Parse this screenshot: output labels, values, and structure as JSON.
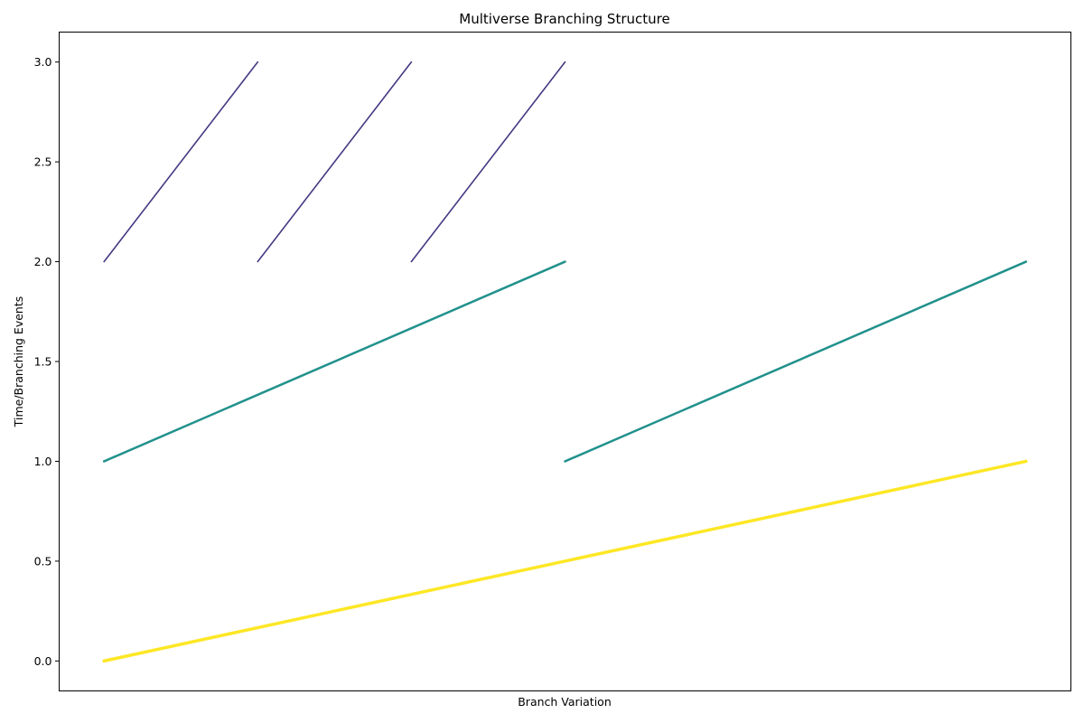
{
  "chart_data": {
    "type": "line",
    "title": "Multiverse Branching Structure",
    "xlabel": "Branch Variation",
    "ylabel": "Time/Branching Events",
    "xlim": [
      -0.146,
      3.146
    ],
    "ylim": [
      -0.15,
      3.15
    ],
    "x_ticks_shown": false,
    "grid": false,
    "y_tick_labels": [
      "0.0",
      "0.5",
      "1.0",
      "1.5",
      "2.0",
      "2.5",
      "3.0"
    ],
    "y_ticks": [
      0.0,
      0.5,
      1.0,
      1.5,
      2.0,
      2.5,
      3.0
    ],
    "series": [
      {
        "level": 0,
        "color": "#fde725",
        "segments": [
          [
            [
              0,
              0
            ],
            [
              3,
              1
            ]
          ]
        ]
      },
      {
        "level": 1,
        "color": "#21918c",
        "segments": [
          [
            [
              0,
              1
            ],
            [
              1.5,
              2
            ]
          ],
          [
            [
              1.5,
              1
            ],
            [
              3,
              2
            ]
          ]
        ]
      },
      {
        "level": 2,
        "color": "#443983",
        "segments": [
          [
            [
              0,
              2
            ],
            [
              0.5,
              3
            ]
          ],
          [
            [
              0.5,
              2
            ],
            [
              1,
              3
            ]
          ],
          [
            [
              1,
              2
            ],
            [
              1.5,
              3
            ]
          ]
        ]
      }
    ]
  }
}
